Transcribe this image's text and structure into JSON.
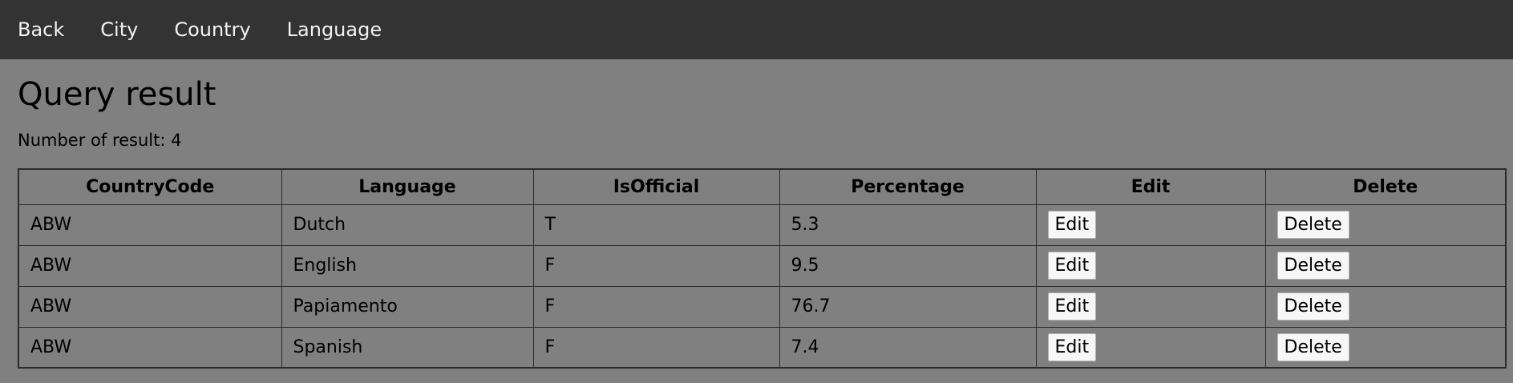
{
  "nav": {
    "items": [
      {
        "label": "Back"
      },
      {
        "label": "City"
      },
      {
        "label": "Country"
      },
      {
        "label": "Language"
      }
    ]
  },
  "page": {
    "title": "Query result",
    "count_text": "Number of result: 4"
  },
  "table": {
    "headers": [
      "CountryCode",
      "Language",
      "IsOfficial",
      "Percentage",
      "Edit",
      "Delete"
    ],
    "rows": [
      {
        "code": "ABW",
        "language": "Dutch",
        "official": "T",
        "percentage": "5.3",
        "edit": "Edit",
        "delete": "Delete"
      },
      {
        "code": "ABW",
        "language": "English",
        "official": "F",
        "percentage": "9.5",
        "edit": "Edit",
        "delete": "Delete"
      },
      {
        "code": "ABW",
        "language": "Papiamento",
        "official": "F",
        "percentage": "76.7",
        "edit": "Edit",
        "delete": "Delete"
      },
      {
        "code": "ABW",
        "language": "Spanish",
        "official": "F",
        "percentage": "7.4",
        "edit": "Edit",
        "delete": "Delete"
      }
    ]
  },
  "colors": {
    "nav_bg": "#333333",
    "nav_text": "#f2f2f2",
    "page_bg": "#808080"
  }
}
